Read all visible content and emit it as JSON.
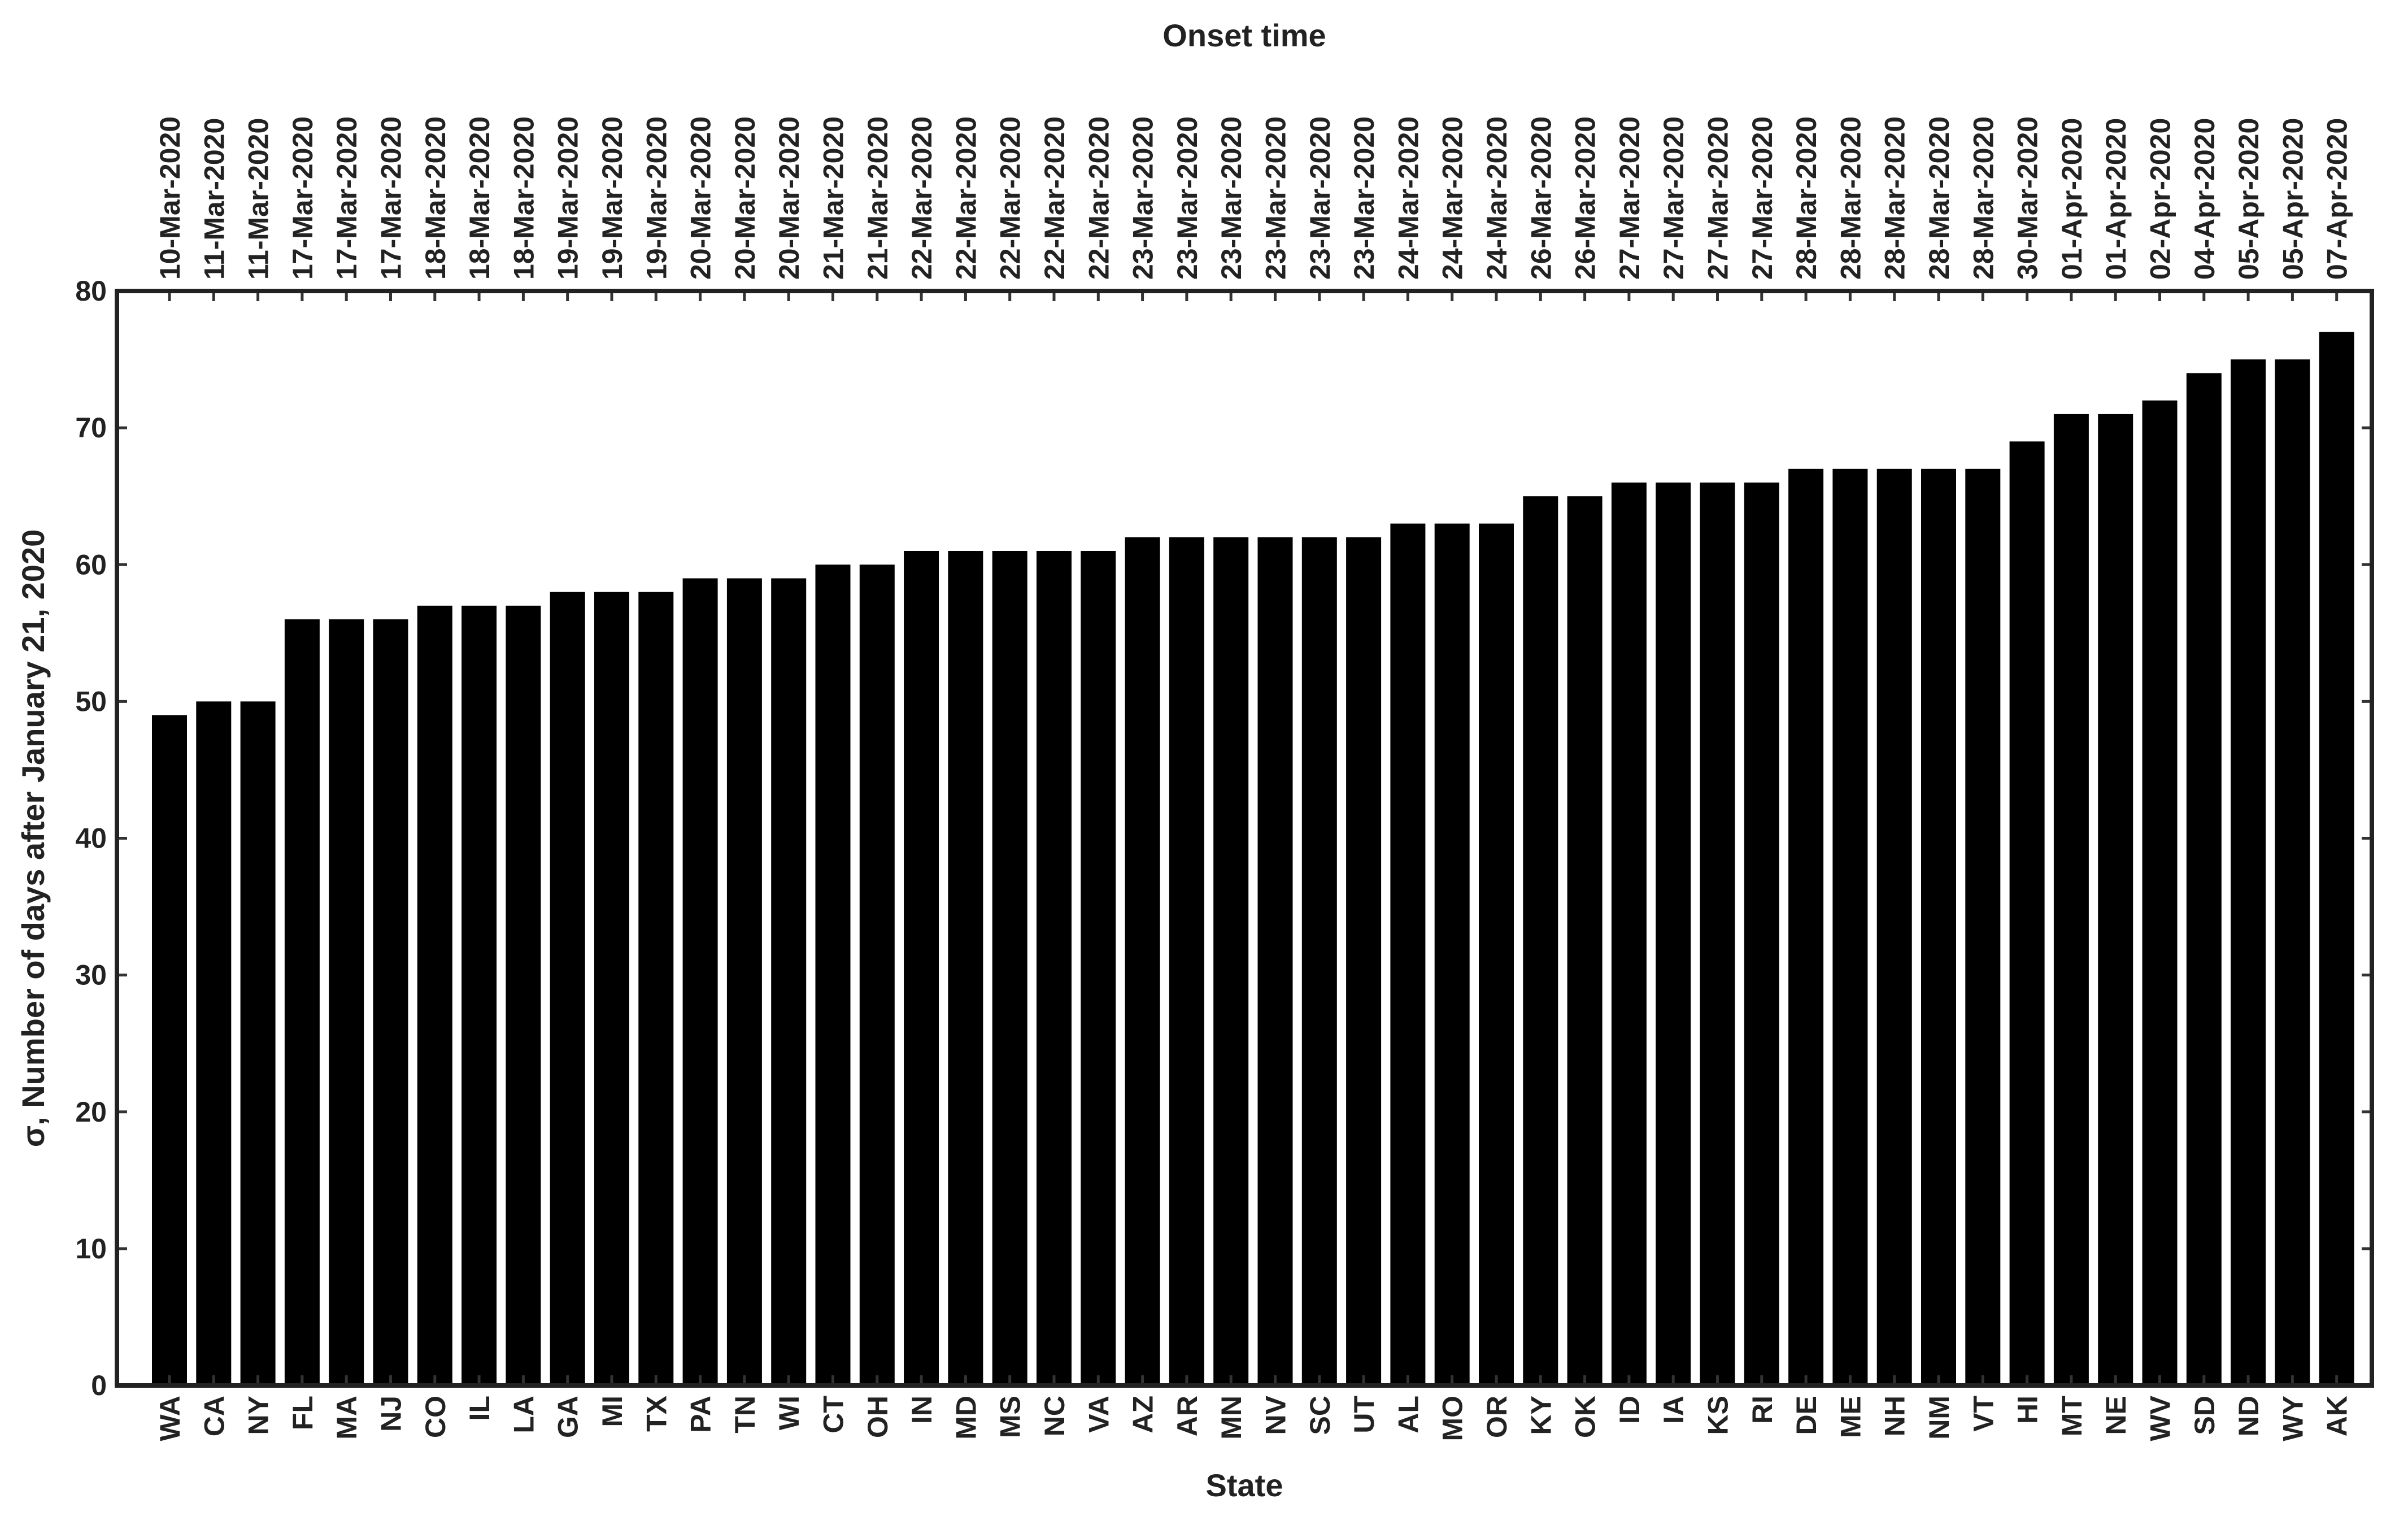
{
  "chart_data": {
    "type": "bar",
    "title": "Onset time",
    "xlabel": "State",
    "ylabel": "σ, Number of days after January 21, 2020",
    "ylim": [
      0,
      80
    ],
    "yticks": [
      0,
      10,
      20,
      30,
      40,
      50,
      60,
      70,
      80
    ],
    "grid": false,
    "bar_color": "#000000",
    "frame_color": "#222222",
    "categories": [
      "WA",
      "CA",
      "NY",
      "FL",
      "MA",
      "NJ",
      "CO",
      "IL",
      "LA",
      "GA",
      "MI",
      "TX",
      "PA",
      "TN",
      "WI",
      "CT",
      "OH",
      "IN",
      "MD",
      "MS",
      "NC",
      "VA",
      "AZ",
      "AR",
      "MN",
      "NV",
      "SC",
      "UT",
      "AL",
      "MO",
      "OR",
      "KY",
      "OK",
      "ID",
      "IA",
      "KS",
      "RI",
      "DE",
      "ME",
      "NH",
      "NM",
      "VT",
      "HI",
      "MT",
      "NE",
      "WV",
      "SD",
      "ND",
      "WY",
      "AK"
    ],
    "values": [
      49,
      50,
      50,
      56,
      56,
      56,
      57,
      57,
      57,
      58,
      58,
      58,
      59,
      59,
      59,
      60,
      60,
      61,
      61,
      61,
      61,
      61,
      62,
      62,
      62,
      62,
      62,
      62,
      63,
      63,
      63,
      65,
      65,
      66,
      66,
      66,
      66,
      67,
      67,
      67,
      67,
      67,
      69,
      71,
      71,
      72,
      74,
      75,
      75,
      77
    ],
    "top_axis_labels": [
      "10-Mar-2020",
      "11-Mar-2020",
      "11-Mar-2020",
      "17-Mar-2020",
      "17-Mar-2020",
      "17-Mar-2020",
      "18-Mar-2020",
      "18-Mar-2020",
      "18-Mar-2020",
      "19-Mar-2020",
      "19-Mar-2020",
      "19-Mar-2020",
      "20-Mar-2020",
      "20-Mar-2020",
      "20-Mar-2020",
      "21-Mar-2020",
      "21-Mar-2020",
      "22-Mar-2020",
      "22-Mar-2020",
      "22-Mar-2020",
      "22-Mar-2020",
      "22-Mar-2020",
      "23-Mar-2020",
      "23-Mar-2020",
      "23-Mar-2020",
      "23-Mar-2020",
      "23-Mar-2020",
      "23-Mar-2020",
      "24-Mar-2020",
      "24-Mar-2020",
      "24-Mar-2020",
      "26-Mar-2020",
      "26-Mar-2020",
      "27-Mar-2020",
      "27-Mar-2020",
      "27-Mar-2020",
      "27-Mar-2020",
      "28-Mar-2020",
      "28-Mar-2020",
      "28-Mar-2020",
      "28-Mar-2020",
      "28-Mar-2020",
      "30-Mar-2020",
      "01-Apr-2020",
      "01-Apr-2020",
      "02-Apr-2020",
      "04-Apr-2020",
      "05-Apr-2020",
      "05-Apr-2020",
      "07-Apr-2020"
    ]
  }
}
